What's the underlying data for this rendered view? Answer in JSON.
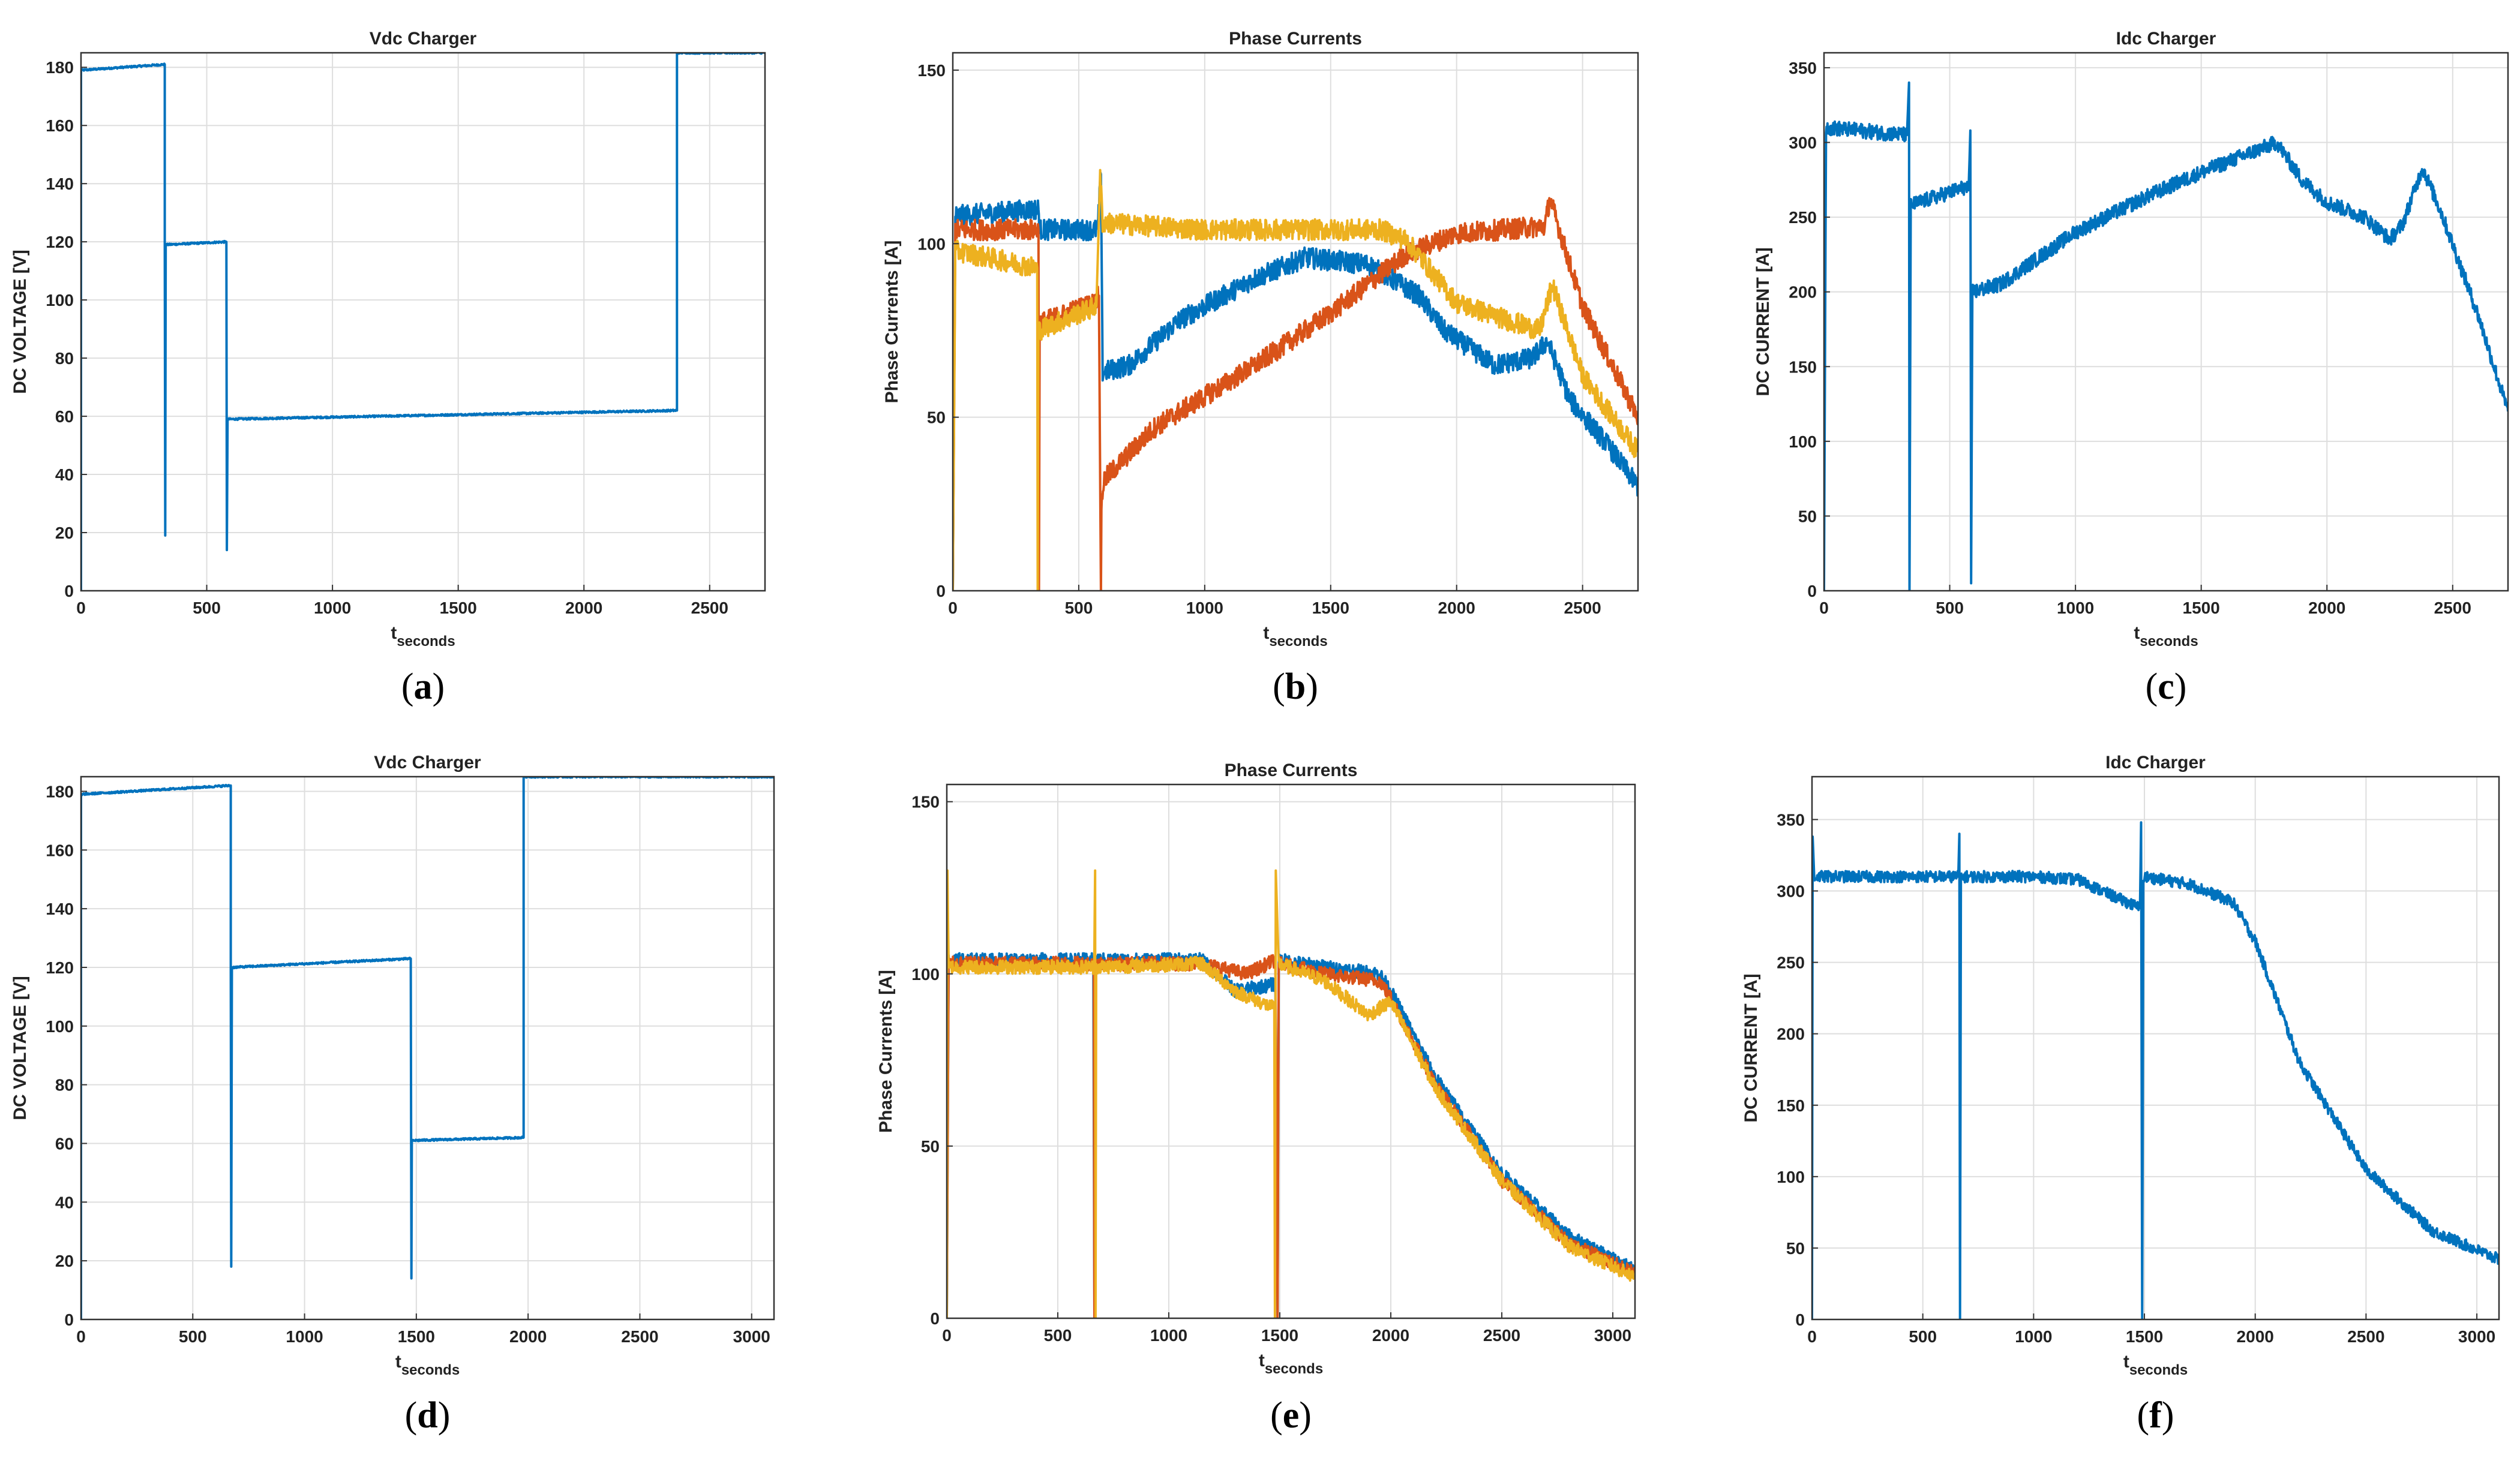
{
  "chart_data": [
    {
      "panel": "(a)",
      "caption_letter": "a",
      "type": "line",
      "title": "Vdc Charger",
      "xlabel": "t",
      "xlabel_sub": "seconds",
      "ylabel": "DC VOLTAGE [V]",
      "xlim": [
        0,
        2720
      ],
      "ylim": [
        0,
        185
      ],
      "xticks": [
        0,
        500,
        1000,
        1500,
        2000,
        2500
      ],
      "yticks": [
        0,
        20,
        40,
        60,
        80,
        100,
        120,
        140,
        160,
        180
      ],
      "grid": true,
      "series": [
        {
          "color": "#0072BD",
          "noise": 0.3,
          "points": [
            [
              0,
              0
            ],
            [
              0,
              179
            ],
            [
              333,
              181
            ],
            [
              333,
              119
            ],
            [
              335,
              19
            ],
            [
              337,
              119
            ],
            [
              578,
              120
            ],
            [
              580,
              14
            ],
            [
              583,
              59
            ],
            [
              2370,
              62
            ],
            [
              2370,
              185
            ],
            [
              2720,
              185
            ]
          ]
        }
      ]
    },
    {
      "panel": "(b)",
      "caption_letter": "b",
      "type": "line",
      "title": "Phase Currents",
      "xlabel": "t",
      "xlabel_sub": "seconds",
      "ylabel": "Phase Currents [A]",
      "xlim": [
        0,
        2720
      ],
      "ylim": [
        0,
        155
      ],
      "xticks": [
        0,
        500,
        1000,
        1500,
        2000,
        2500
      ],
      "yticks": [
        0,
        50,
        100,
        150
      ],
      "grid": true,
      "series": [
        {
          "color": "#0072BD",
          "noise": 3,
          "points": [
            [
              0,
              0
            ],
            [
              10,
              108
            ],
            [
              340,
              110
            ],
            [
              345,
              104
            ],
            [
              575,
              104
            ],
            [
              588,
              120
            ],
            [
              595,
              63
            ],
            [
              700,
              65
            ],
            [
              900,
              78
            ],
            [
              1200,
              90
            ],
            [
              1400,
              96
            ],
            [
              1650,
              94
            ],
            [
              1850,
              85
            ],
            [
              1950,
              75
            ],
            [
              2150,
              65
            ],
            [
              2300,
              67
            ],
            [
              2360,
              72
            ],
            [
              2450,
              55
            ],
            [
              2600,
              42
            ],
            [
              2720,
              30
            ]
          ]
        },
        {
          "color": "#D95319",
          "noise": 3,
          "points": [
            [
              0,
              0
            ],
            [
              10,
              104
            ],
            [
              340,
              104
            ],
            [
              342,
              0
            ],
            [
              345,
              77
            ],
            [
              560,
              83
            ],
            [
              580,
              85
            ],
            [
              588,
              0
            ],
            [
              590,
              25
            ],
            [
              600,
              32
            ],
            [
              800,
              47
            ],
            [
              1200,
              65
            ],
            [
              1500,
              80
            ],
            [
              1800,
              97
            ],
            [
              2000,
              103
            ],
            [
              2350,
              105
            ],
            [
              2370,
              113
            ],
            [
              2500,
              82
            ],
            [
              2720,
              50
            ]
          ]
        },
        {
          "color": "#EDB120",
          "noise": 3,
          "points": [
            [
              0,
              0
            ],
            [
              10,
              98
            ],
            [
              335,
              93
            ],
            [
              337,
              0
            ],
            [
              340,
              75
            ],
            [
              570,
              82
            ],
            [
              585,
              120
            ],
            [
              595,
              106
            ],
            [
              1000,
              104
            ],
            [
              1500,
              104
            ],
            [
              1700,
              104
            ],
            [
              1800,
              101
            ],
            [
              1900,
              92
            ],
            [
              2000,
              83
            ],
            [
              2200,
              78
            ],
            [
              2330,
              75
            ],
            [
              2380,
              88
            ],
            [
              2500,
              62
            ],
            [
              2720,
              40
            ]
          ]
        }
      ]
    },
    {
      "panel": "(c)",
      "caption_letter": "c",
      "type": "line",
      "title": "Idc Charger",
      "xlabel": "t",
      "xlabel_sub": "seconds",
      "ylabel": "DC CURRENT [A]",
      "xlim": [
        0,
        2720
      ],
      "ylim": [
        0,
        360
      ],
      "xticks": [
        0,
        500,
        1000,
        1500,
        2000,
        2500
      ],
      "yticks": [
        0,
        50,
        100,
        150,
        200,
        250,
        300,
        350
      ],
      "grid": true,
      "series": [
        {
          "color": "#0072BD",
          "noise": 5,
          "points": [
            [
              0,
              0
            ],
            [
              8,
              310
            ],
            [
              330,
              305
            ],
            [
              338,
              340
            ],
            [
              340,
              0
            ],
            [
              345,
              258
            ],
            [
              560,
              270
            ],
            [
              575,
              268
            ],
            [
              582,
              308
            ],
            [
              585,
              5
            ],
            [
              590,
              200
            ],
            [
              700,
              205
            ],
            [
              1000,
              240
            ],
            [
              1300,
              265
            ],
            [
              1500,
              280
            ],
            [
              1800,
              300
            ],
            [
              1900,
              275
            ],
            [
              2000,
              260
            ],
            [
              2150,
              250
            ],
            [
              2250,
              235
            ],
            [
              2300,
              245
            ],
            [
              2380,
              283
            ],
            [
              2450,
              255
            ],
            [
              2600,
              185
            ],
            [
              2720,
              120
            ]
          ]
        }
      ]
    },
    {
      "panel": "(d)",
      "caption_letter": "d",
      "type": "line",
      "title": "Vdc Charger",
      "xlabel": "t",
      "xlabel_sub": "seconds",
      "ylabel": "DC VOLTAGE [V]",
      "xlim": [
        0,
        3100
      ],
      "ylim": [
        0,
        185
      ],
      "xticks": [
        0,
        500,
        1000,
        1500,
        2000,
        2500,
        3000
      ],
      "yticks": [
        0,
        20,
        40,
        60,
        80,
        100,
        120,
        140,
        160,
        180
      ],
      "grid": true,
      "series": [
        {
          "color": "#0072BD",
          "noise": 0.3,
          "points": [
            [
              0,
              0
            ],
            [
              0,
              179
            ],
            [
              670,
              182
            ],
            [
              670,
              120
            ],
            [
              672,
              18
            ],
            [
              675,
              120
            ],
            [
              1475,
              123
            ],
            [
              1478,
              14
            ],
            [
              1480,
              61
            ],
            [
              1980,
              62
            ],
            [
              1980,
              185
            ],
            [
              3100,
              185
            ]
          ]
        }
      ]
    },
    {
      "panel": "(e)",
      "caption_letter": "e",
      "type": "line",
      "title": "Phase Currents",
      "xlabel": "t",
      "xlabel_sub": "seconds",
      "ylabel": "Phase Currents [A]",
      "xlim": [
        0,
        3100
      ],
      "ylim": [
        0,
        155
      ],
      "xticks": [
        0,
        500,
        1000,
        1500,
        2000,
        2500,
        3000
      ],
      "yticks": [
        0,
        50,
        100,
        150
      ],
      "grid": true,
      "series": [
        {
          "color": "#0072BD",
          "noise": 2,
          "points": [
            [
              0,
              0
            ],
            [
              8,
              104
            ],
            [
              660,
              104
            ],
            [
              665,
              0
            ],
            [
              670,
              104
            ],
            [
              1150,
              104
            ],
            [
              1300,
              95
            ],
            [
              1480,
              97
            ],
            [
              1490,
              0
            ],
            [
              1495,
              104
            ],
            [
              1700,
              102
            ],
            [
              1950,
              100
            ],
            [
              2000,
              95
            ],
            [
              2200,
              70
            ],
            [
              2500,
              42
            ],
            [
              2800,
              24
            ],
            [
              3100,
              14
            ]
          ]
        },
        {
          "color": "#D95319",
          "noise": 2,
          "points": [
            [
              0,
              0
            ],
            [
              8,
              103
            ],
            [
              662,
              103
            ],
            [
              665,
              0
            ],
            [
              670,
              103
            ],
            [
              1150,
              103
            ],
            [
              1350,
              100
            ],
            [
              1480,
              104
            ],
            [
              1490,
              0
            ],
            [
              1495,
              103
            ],
            [
              1700,
              100
            ],
            [
              1950,
              98
            ],
            [
              2000,
              93
            ],
            [
              2200,
              68
            ],
            [
              2500,
              40
            ],
            [
              2800,
              22
            ],
            [
              3100,
              13
            ]
          ]
        },
        {
          "color": "#EDB120",
          "noise": 2,
          "points": [
            [
              0,
              0
            ],
            [
              3,
              130
            ],
            [
              8,
              102
            ],
            [
              664,
              102
            ],
            [
              668,
              130
            ],
            [
              670,
              0
            ],
            [
              673,
              102
            ],
            [
              1150,
              103
            ],
            [
              1300,
              95
            ],
            [
              1475,
              90
            ],
            [
              1478,
              0
            ],
            [
              1482,
              130
            ],
            [
              1495,
              103
            ],
            [
              1700,
              98
            ],
            [
              1900,
              88
            ],
            [
              2000,
              92
            ],
            [
              2200,
              67
            ],
            [
              2500,
              40
            ],
            [
              2800,
              21
            ],
            [
              3100,
              12
            ]
          ]
        }
      ]
    },
    {
      "panel": "(f)",
      "caption_letter": "f",
      "type": "line",
      "title": "Idc Charger",
      "xlabel": "t",
      "xlabel_sub": "seconds",
      "ylabel": "DC CURRENT [A]",
      "xlim": [
        0,
        3100
      ],
      "ylim": [
        0,
        380
      ],
      "xticks": [
        0,
        500,
        1000,
        1500,
        2000,
        2500,
        3000
      ],
      "yticks": [
        0,
        50,
        100,
        150,
        200,
        250,
        300,
        350
      ],
      "grid": true,
      "series": [
        {
          "color": "#0072BD",
          "noise": 4,
          "points": [
            [
              0,
              0
            ],
            [
              3,
              338
            ],
            [
              10,
              310
            ],
            [
              660,
              310
            ],
            [
              665,
              340
            ],
            [
              668,
              0
            ],
            [
              672,
              310
            ],
            [
              1000,
              310
            ],
            [
              1200,
              308
            ],
            [
              1350,
              297
            ],
            [
              1480,
              288
            ],
            [
              1485,
              348
            ],
            [
              1490,
              0
            ],
            [
              1495,
              310
            ],
            [
              1700,
              305
            ],
            [
              1900,
              292
            ],
            [
              2000,
              265
            ],
            [
              2200,
              180
            ],
            [
              2500,
              105
            ],
            [
              2800,
              62
            ],
            [
              3100,
              42
            ]
          ]
        }
      ]
    }
  ]
}
